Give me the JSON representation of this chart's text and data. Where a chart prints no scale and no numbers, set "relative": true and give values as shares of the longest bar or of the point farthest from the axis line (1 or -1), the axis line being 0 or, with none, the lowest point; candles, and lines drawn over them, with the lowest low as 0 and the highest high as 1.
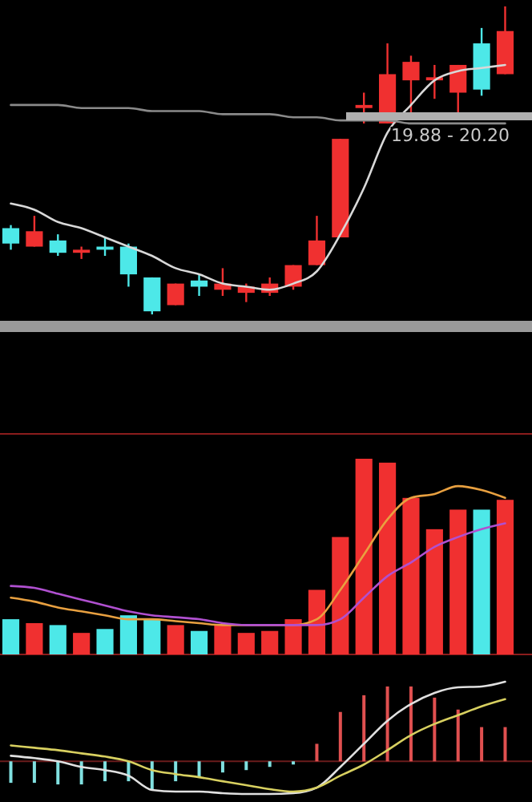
{
  "chart_data": [
    {
      "type": "candlestick",
      "relative": true,
      "categories": [
        null,
        null,
        null,
        null,
        null,
        null,
        null,
        null,
        null,
        null,
        null,
        null,
        null,
        null,
        null,
        null,
        null,
        null,
        null,
        null,
        null,
        null
      ],
      "ohlc": [
        [
          0.28,
          0.29,
          0.21,
          0.23
        ],
        [
          0.22,
          0.32,
          0.22,
          0.27
        ],
        [
          0.24,
          0.26,
          0.19,
          0.2
        ],
        [
          0.2,
          0.22,
          0.18,
          0.21
        ],
        [
          0.22,
          0.25,
          0.19,
          0.21
        ],
        [
          0.22,
          0.23,
          0.09,
          0.13
        ],
        [
          0.12,
          0.12,
          0,
          0.01
        ],
        [
          0.03,
          0.1,
          0.03,
          0.1
        ],
        [
          0.11,
          0.13,
          0.06,
          0.09
        ],
        [
          0.08,
          0.15,
          0.06,
          0.1
        ],
        [
          0.07,
          0.1,
          0.04,
          0.09
        ],
        [
          0.07,
          0.12,
          0.06,
          0.1
        ],
        [
          0.09,
          0.16,
          0.08,
          0.16
        ],
        [
          0.16,
          0.32,
          0.16,
          0.24
        ],
        [
          0.25,
          0.57,
          0.25,
          0.57
        ],
        [
          0.67,
          0.72,
          0.62,
          0.68
        ],
        [
          0.62,
          0.88,
          0.62,
          0.78
        ],
        [
          0.76,
          0.84,
          0.65,
          0.82
        ],
        [
          0.76,
          0.81,
          0.7,
          0.77
        ],
        [
          0.72,
          0.81,
          0.64,
          0.81
        ],
        [
          0.88,
          0.93,
          0.71,
          0.73
        ],
        [
          0.78,
          1,
          0.78,
          0.92
        ]
      ],
      "colors": [
        "#4de8e8",
        "#f03030",
        "#4de8e8",
        "#f03030",
        "#4de8e8",
        "#4de8e8",
        "#4de8e8",
        "#f03030",
        "#4de8e8",
        "#f03030",
        "#f03030",
        "#f03030",
        "#f03030",
        "#f03030",
        "#f03030",
        "#f03030",
        "#f03030",
        "#f03030",
        "#f03030",
        "#f03030",
        "#4de8e8",
        "#f03030"
      ],
      "series": [
        {
          "type": "line",
          "color": "#d8d8d8",
          "values": [
            0.36,
            0.34,
            0.3,
            0.28,
            0.25,
            0.22,
            0.19,
            0.15,
            0.13,
            0.1,
            0.09,
            0.08,
            0.1,
            0.14,
            0.26,
            0.41,
            0.59,
            0.68,
            0.76,
            0.79,
            0.8,
            0.81
          ]
        },
        {
          "type": "line",
          "color": "#8a8a8a",
          "values": [
            0.68,
            0.68,
            0.68,
            0.67,
            0.67,
            0.67,
            0.66,
            0.66,
            0.66,
            0.65,
            0.65,
            0.65,
            0.64,
            0.64,
            0.63,
            0.63,
            0.63,
            0.62,
            0.62,
            0.62,
            0.62,
            0.62
          ]
        }
      ],
      "annotations": [
        "19.88 - 20.20"
      ]
    },
    {
      "type": "bar",
      "relative": true,
      "categories": [
        null,
        null,
        null,
        null,
        null,
        null,
        null,
        null,
        null,
        null,
        null,
        null,
        null,
        null,
        null,
        null,
        null,
        null,
        null,
        null,
        null,
        null
      ],
      "series": [
        {
          "type": "bar",
          "colors": [
            "#4de8e8",
            "#f03030",
            "#4de8e8",
            "#f03030",
            "#4de8e8",
            "#4de8e8",
            "#4de8e8",
            "#f03030",
            "#4de8e8",
            "#f03030",
            "#f03030",
            "#f03030",
            "#f03030",
            "#f03030",
            "#f03030",
            "#f03030",
            "#f03030",
            "#f03030",
            "#f03030",
            "#f03030",
            "#4de8e8",
            "#f03030"
          ],
          "values": [
            0.18,
            0.16,
            0.15,
            0.11,
            0.13,
            0.2,
            0.18,
            0.15,
            0.12,
            0.15,
            0.11,
            0.12,
            0.18,
            0.33,
            0.6,
            1,
            0.98,
            0.8,
            0.64,
            0.74,
            0.74,
            0.79
          ]
        },
        {
          "type": "line",
          "color": "#e8a040",
          "values": [
            0.29,
            0.27,
            0.24,
            0.22,
            0.2,
            0.18,
            0.18,
            0.17,
            0.16,
            0.15,
            0.15,
            0.15,
            0.15,
            0.18,
            0.33,
            0.51,
            0.69,
            0.8,
            0.82,
            0.86,
            0.84,
            0.8
          ]
        },
        {
          "type": "line",
          "color": "#b050d0",
          "values": [
            0.35,
            0.34,
            0.31,
            0.28,
            0.25,
            0.22,
            0.2,
            0.19,
            0.18,
            0.16,
            0.15,
            0.15,
            0.15,
            0.15,
            0.18,
            0.29,
            0.4,
            0.47,
            0.55,
            0.6,
            0.64,
            0.67
          ]
        }
      ]
    },
    {
      "type": "bar",
      "relative": true,
      "ref_lines": [
        {
          "axis": "y",
          "value": 0,
          "color": "#6a1c1c"
        }
      ],
      "categories": [
        null,
        null,
        null,
        null,
        null,
        null,
        null,
        null,
        null,
        null,
        null,
        null,
        null,
        null,
        null,
        null,
        null,
        null,
        null,
        null,
        null,
        null
      ],
      "series": [
        {
          "type": "bar",
          "colors": [
            "#80e0e0",
            "#80e0e0",
            "#80e0e0",
            "#80e0e0",
            "#80e0e0",
            "#80e0e0",
            "#80e0e0",
            "#80e0e0",
            "#80e0e0",
            "#80e0e0",
            "#80e0e0",
            "#80e0e0",
            "#80e0e0",
            "#e05050",
            "#e05050",
            "#e05050",
            "#e05050",
            "#e05050",
            "#e05050",
            "#e05050",
            "#e05050",
            "#e05050"
          ],
          "values": [
            -0.27,
            -0.27,
            -0.29,
            -0.29,
            -0.25,
            -0.25,
            -0.36,
            -0.25,
            -0.2,
            -0.14,
            -0.11,
            -0.07,
            -0.04,
            0.22,
            0.62,
            0.83,
            0.94,
            0.94,
            0.8,
            0.65,
            0.43,
            0.43
          ]
        },
        {
          "type": "line",
          "color": "#e0e0e0",
          "values": [
            0.07,
            0.04,
            0,
            -0.07,
            -0.11,
            -0.18,
            -0.36,
            -0.38,
            -0.38,
            -0.4,
            -0.41,
            -0.41,
            -0.4,
            -0.33,
            -0.07,
            0.22,
            0.51,
            0.72,
            0.86,
            0.93,
            0.94,
            1
          ]
        },
        {
          "type": "line",
          "color": "#d8d060",
          "values": [
            0.2,
            0.17,
            0.14,
            0.1,
            0.06,
            0,
            -0.11,
            -0.16,
            -0.2,
            -0.25,
            -0.3,
            -0.35,
            -0.38,
            -0.33,
            -0.18,
            -0.04,
            0.14,
            0.33,
            0.47,
            0.58,
            0.69,
            0.78
          ]
        }
      ]
    }
  ]
}
